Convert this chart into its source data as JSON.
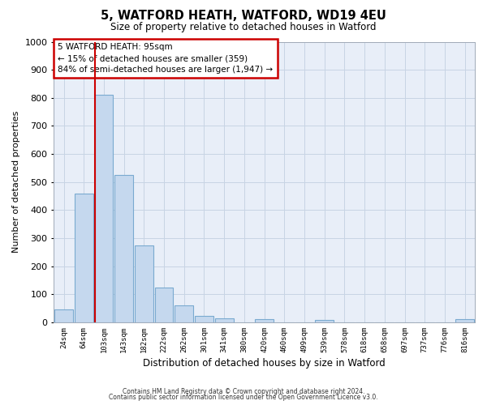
{
  "title": "5, WATFORD HEATH, WATFORD, WD19 4EU",
  "subtitle": "Size of property relative to detached houses in Watford",
  "xlabel": "Distribution of detached houses by size in Watford",
  "ylabel": "Number of detached properties",
  "bar_labels": [
    "24sqm",
    "64sqm",
    "103sqm",
    "143sqm",
    "182sqm",
    "222sqm",
    "262sqm",
    "301sqm",
    "341sqm",
    "380sqm",
    "420sqm",
    "460sqm",
    "499sqm",
    "539sqm",
    "578sqm",
    "618sqm",
    "658sqm",
    "697sqm",
    "737sqm",
    "776sqm",
    "816sqm"
  ],
  "bar_values": [
    47,
    460,
    810,
    525,
    275,
    125,
    60,
    23,
    13,
    0,
    10,
    0,
    0,
    8,
    0,
    0,
    0,
    0,
    0,
    0,
    10
  ],
  "bar_color": "#c5d8ee",
  "bar_edge_color": "#7aaad0",
  "ylim": [
    0,
    1000
  ],
  "yticks": [
    0,
    100,
    200,
    300,
    400,
    500,
    600,
    700,
    800,
    900,
    1000
  ],
  "red_line_bar_index": 2,
  "annotation_line1": "5 WATFORD HEATH: 95sqm",
  "annotation_line2": "← 15% of detached houses are smaller (359)",
  "annotation_line3": "84% of semi-detached houses are larger (1,947) →",
  "annotation_box_color": "#cc0000",
  "red_line_color": "#cc0000",
  "grid_color": "#c8d4e4",
  "bg_color": "#ffffff",
  "plot_bg_color": "#e8eef8",
  "footer1": "Contains HM Land Registry data © Crown copyright and database right 2024.",
  "footer2": "Contains public sector information licensed under the Open Government Licence v3.0."
}
